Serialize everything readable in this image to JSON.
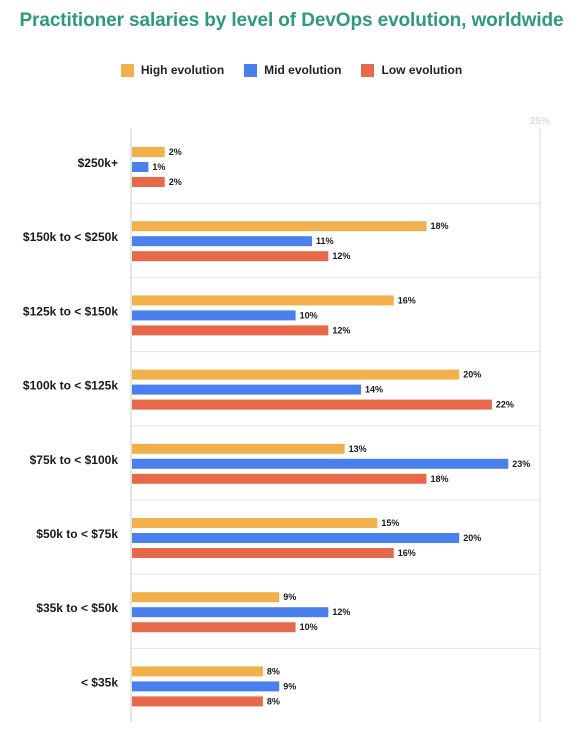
{
  "chart_data": {
    "type": "bar",
    "orientation": "horizontal",
    "title": "Practitioner salaries by level of DevOps evolution, worldwide",
    "categories": [
      "$250k+",
      "$150k to < $250k",
      "$125k to < $150k",
      "$100k to < $125k",
      "$75k to < $100k",
      "$50k to < $75k",
      "$35k to < $50k",
      "< $35k"
    ],
    "series": [
      {
        "name": "High evolution",
        "color": "#f2b04a",
        "values": [
          2,
          18,
          16,
          20,
          13,
          15,
          9,
          8
        ]
      },
      {
        "name": "Mid evolution",
        "color": "#4a80ee",
        "values": [
          1,
          11,
          10,
          14,
          23,
          20,
          12,
          9
        ]
      },
      {
        "name": "Low evolution",
        "color": "#e8684a",
        "values": [
          2,
          12,
          12,
          22,
          18,
          16,
          10,
          8
        ]
      }
    ],
    "value_suffix": "%",
    "xlim": [
      0,
      25
    ],
    "x_tick_label": "25%",
    "legend_position": "top",
    "grid": true
  }
}
